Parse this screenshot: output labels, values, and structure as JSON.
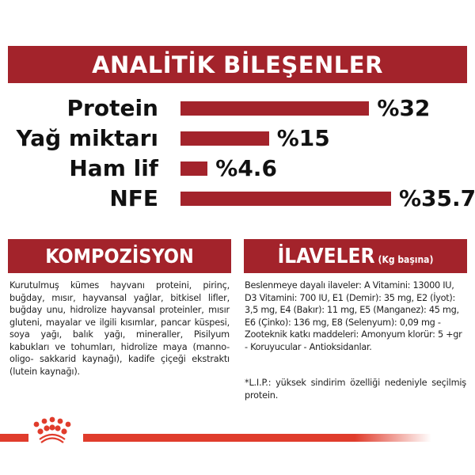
{
  "analysis": {
    "title": "ANALİTİK BİLEŞENLER",
    "bar_color": "#a3232b",
    "items": [
      {
        "label": "Protein",
        "value": 32,
        "value_label": "%32"
      },
      {
        "label": "Yağ miktarı",
        "value": 15,
        "value_label": "%15"
      },
      {
        "label": "Ham lif",
        "value": 4.6,
        "value_label": "%4.6"
      },
      {
        "label": "NFE",
        "value": 35.7,
        "value_label": "%35.7"
      }
    ]
  },
  "composition": {
    "title": "KOMPOZİSYON",
    "text": "Kurutulmuş kümes hayvanı proteini, pirinç, buğday, mısır, hayvansal yağlar, bitkisel lifler, buğday unu, hidrolize hayvansal proteinler, mısır gluteni, mayalar ve ilgili kısımlar, pancar küspesi, soya yağı, balık yağı, mineraller, Pisilyum kabukları ve tohumları, hidrolize maya (manno-oligo- sakkarid kaynağı), kadife çiçeği ekstraktı (lutein kaynağı)."
  },
  "additives": {
    "title": "İLAVELER",
    "subtitle": "(Kg başına)",
    "text": "Beslenmeye dayalı ilaveler: A Vitamini: 13000 IU, D3 Vitamini: 700 IU, E1 (Demir): 35 mg, E2 (İyot): 3,5 mg, E4 (Bakır): 11 mg, E5 (Manganez): 45 mg, E6 (Çinko): 136 mg, E8 (Selenyum): 0,09 mg - Zooteknik katkı maddeleri: Amonyum klorür: 5 +gr - Koruyucular - Antioksidanlar.",
    "footnote": "*L.I.P.: yüksek sindirim özelliği nedeniyle seçilmiş protein."
  },
  "footer": {
    "logo": "royal-crown-logo",
    "accent_color": "#e03c2c"
  }
}
